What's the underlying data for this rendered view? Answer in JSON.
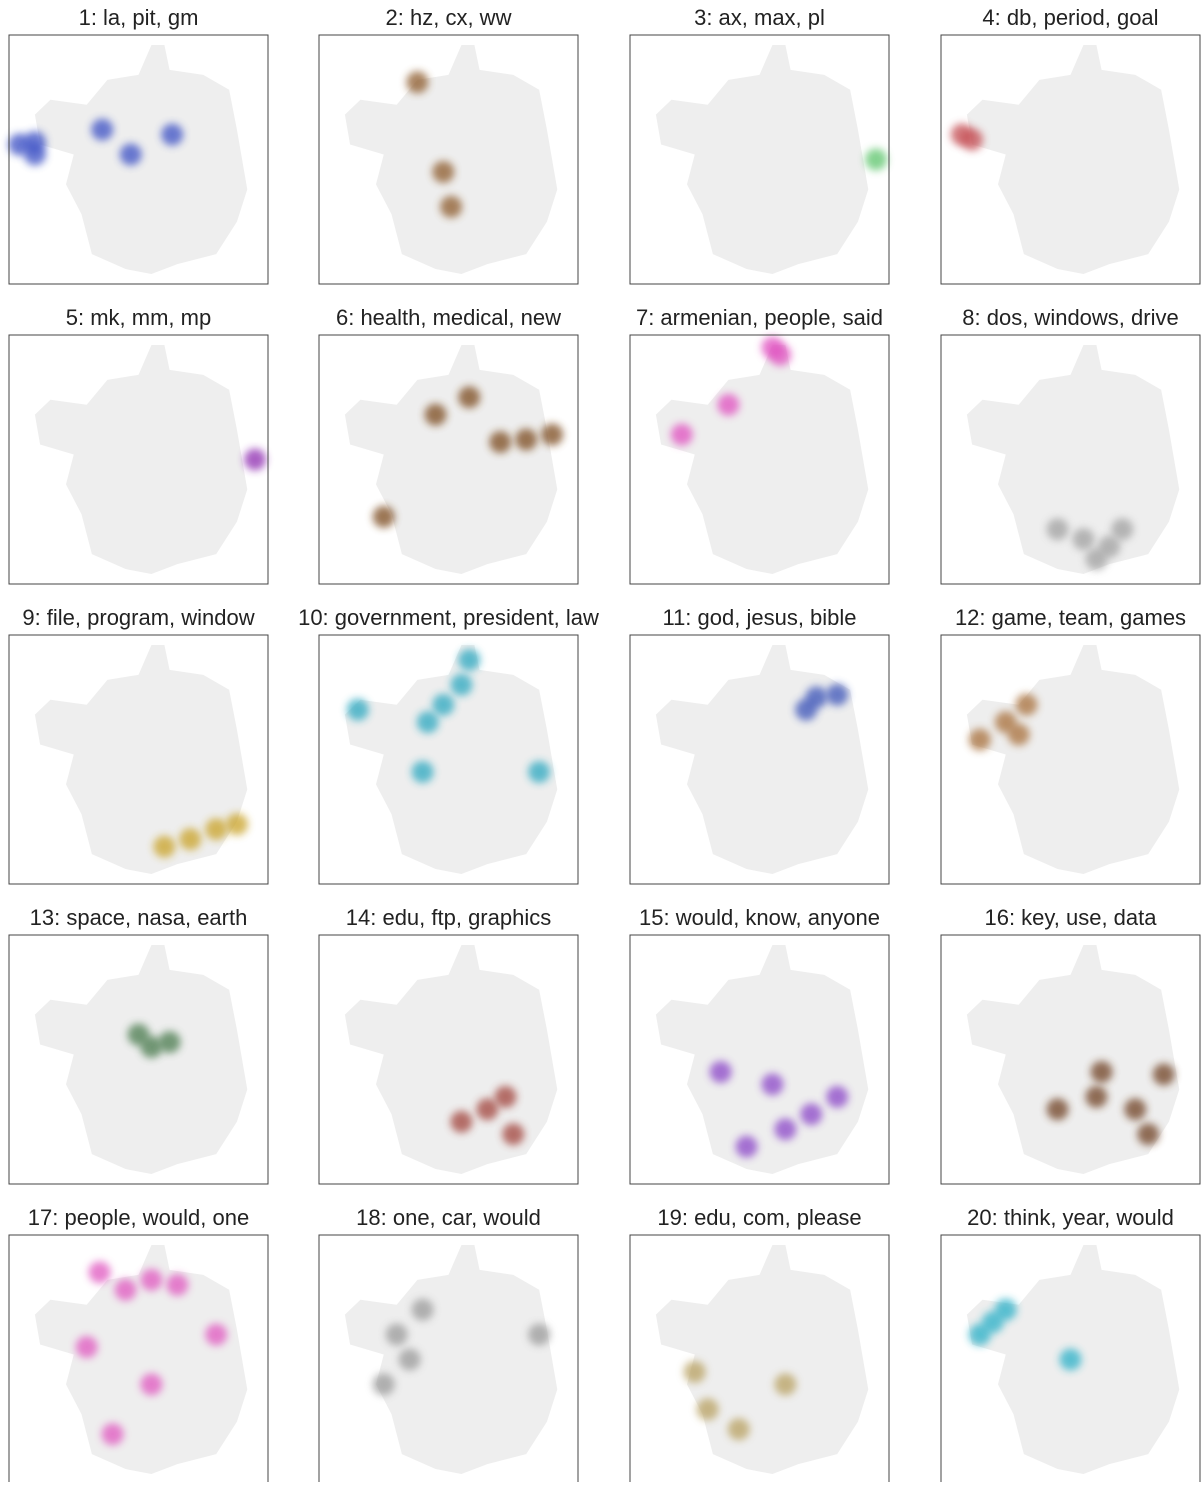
{
  "chart_data": [
    {
      "type": "scatter",
      "title": "1: la, pit, gm",
      "color": "#3b4fc4",
      "xlim": [
        0,
        100
      ],
      "ylim": [
        0,
        100
      ],
      "x": [
        4,
        10,
        10,
        36,
        63,
        47
      ],
      "y": [
        56,
        57,
        52,
        62,
        60,
        52
      ]
    },
    {
      "type": "scatter",
      "title": "2: hz, cx, ww",
      "color": "#8c5a2b",
      "xlim": [
        0,
        100
      ],
      "ylim": [
        0,
        100
      ],
      "x": [
        38,
        51,
        48
      ],
      "y": [
        81,
        31,
        45
      ]
    },
    {
      "type": "scatter",
      "title": "3: ax, max, pl",
      "color": "#5cc46a",
      "xlim": [
        0,
        100
      ],
      "ylim": [
        0,
        100
      ],
      "x": [
        95
      ],
      "y": [
        50
      ]
    },
    {
      "type": "scatter",
      "title": "4: db, period, goal",
      "color": "#c44e52",
      "xlim": [
        0,
        100
      ],
      "ylim": [
        0,
        100
      ],
      "x": [
        8,
        12
      ],
      "y": [
        60,
        58
      ]
    },
    {
      "type": "scatter",
      "title": "5: mk, mm, mp",
      "color": "#8e2cb0",
      "xlim": [
        0,
        100
      ],
      "ylim": [
        0,
        100
      ],
      "x": [
        95
      ],
      "y": [
        50
      ]
    },
    {
      "type": "scatter",
      "title": "6: health, medical, new",
      "color": "#7a4a1e",
      "xlim": [
        0,
        100
      ],
      "ylim": [
        0,
        100
      ],
      "x": [
        80,
        70,
        90,
        45,
        58,
        25
      ],
      "y": [
        58,
        57,
        60,
        68,
        75,
        27
      ]
    },
    {
      "type": "scatter",
      "title": "7: armenian, people, said",
      "color": "#e04fc0",
      "xlim": [
        0,
        100
      ],
      "ylim": [
        0,
        100
      ],
      "x": [
        55,
        58,
        20,
        38
      ],
      "y": [
        95,
        92,
        60,
        72
      ]
    },
    {
      "type": "scatter",
      "title": "8: dos, windows, drive",
      "color": "#a0a0a0",
      "xlim": [
        0,
        100
      ],
      "ylim": [
        0,
        100
      ],
      "x": [
        55,
        65,
        45,
        70,
        60
      ],
      "y": [
        18,
        15,
        22,
        22,
        10
      ]
    },
    {
      "type": "scatter",
      "title": "9: file, program, window",
      "color": "#c9a227",
      "xlim": [
        0,
        100
      ],
      "ylim": [
        0,
        100
      ],
      "x": [
        80,
        70,
        60,
        88
      ],
      "y": [
        22,
        18,
        15,
        24
      ]
    },
    {
      "type": "scatter",
      "title": "10: government, president, law",
      "color": "#2aa7c0",
      "xlim": [
        0,
        100
      ],
      "ylim": [
        0,
        100
      ],
      "x": [
        48,
        42,
        55,
        58,
        85,
        15,
        40
      ],
      "y": [
        72,
        65,
        80,
        90,
        45,
        70,
        45
      ]
    },
    {
      "type": "scatter",
      "title": "11: god, jesus, bible",
      "color": "#3a52b8",
      "xlim": [
        0,
        100
      ],
      "ylim": [
        0,
        100
      ],
      "x": [
        72,
        80,
        68
      ],
      "y": [
        75,
        76,
        70
      ]
    },
    {
      "type": "scatter",
      "title": "12: game, team, games",
      "color": "#a8703a",
      "xlim": [
        0,
        100
      ],
      "ylim": [
        0,
        100
      ],
      "x": [
        15,
        25,
        30,
        33
      ],
      "y": [
        58,
        65,
        60,
        72
      ]
    },
    {
      "type": "scatter",
      "title": "13: space, nasa, earth",
      "color": "#4a7a4e",
      "xlim": [
        0,
        100
      ],
      "ylim": [
        0,
        100
      ],
      "x": [
        55,
        62,
        50
      ],
      "y": [
        55,
        57,
        60
      ]
    },
    {
      "type": "scatter",
      "title": "14: edu, ftp, graphics",
      "color": "#a0423a",
      "xlim": [
        0,
        100
      ],
      "ylim": [
        0,
        100
      ],
      "x": [
        65,
        55,
        72,
        75
      ],
      "y": [
        30,
        25,
        35,
        20
      ]
    },
    {
      "type": "scatter",
      "title": "15: would, know, anyone",
      "color": "#8a44c8",
      "xlim": [
        0,
        100
      ],
      "ylim": [
        0,
        100
      ],
      "x": [
        60,
        45,
        70,
        35,
        80,
        55
      ],
      "y": [
        22,
        15,
        28,
        45,
        35,
        40
      ]
    },
    {
      "type": "scatter",
      "title": "16: key, use, data",
      "color": "#6e4020",
      "xlim": [
        0,
        100
      ],
      "ylim": [
        0,
        100
      ],
      "x": [
        86,
        45,
        60,
        75,
        62,
        80
      ],
      "y": [
        44,
        30,
        35,
        30,
        45,
        20
      ]
    },
    {
      "type": "scatter",
      "title": "17: people, would, one",
      "color": "#e057c0",
      "xlim": [
        0,
        100
      ],
      "ylim": [
        0,
        100
      ],
      "x": [
        55,
        65,
        45,
        35,
        80,
        30,
        55,
        40
      ],
      "y": [
        82,
        80,
        78,
        85,
        60,
        55,
        40,
        20
      ]
    },
    {
      "type": "scatter",
      "title": "18: one, car, would",
      "color": "#9a9a9a",
      "xlim": [
        0,
        100
      ],
      "ylim": [
        0,
        100
      ],
      "x": [
        30,
        35,
        40,
        85,
        25
      ],
      "y": [
        60,
        50,
        70,
        60,
        40
      ]
    },
    {
      "type": "scatter",
      "title": "19: edu, com, please",
      "color": "#b8a060",
      "xlim": [
        0,
        100
      ],
      "ylim": [
        0,
        100
      ],
      "x": [
        30,
        42,
        60,
        25
      ],
      "y": [
        30,
        22,
        40,
        45
      ]
    },
    {
      "type": "scatter",
      "title": "20: think, year, would",
      "color": "#2ab0c8",
      "xlim": [
        0,
        100
      ],
      "ylim": [
        0,
        100
      ],
      "x": [
        15,
        25,
        20,
        50
      ],
      "y": [
        60,
        70,
        65,
        50
      ]
    }
  ]
}
